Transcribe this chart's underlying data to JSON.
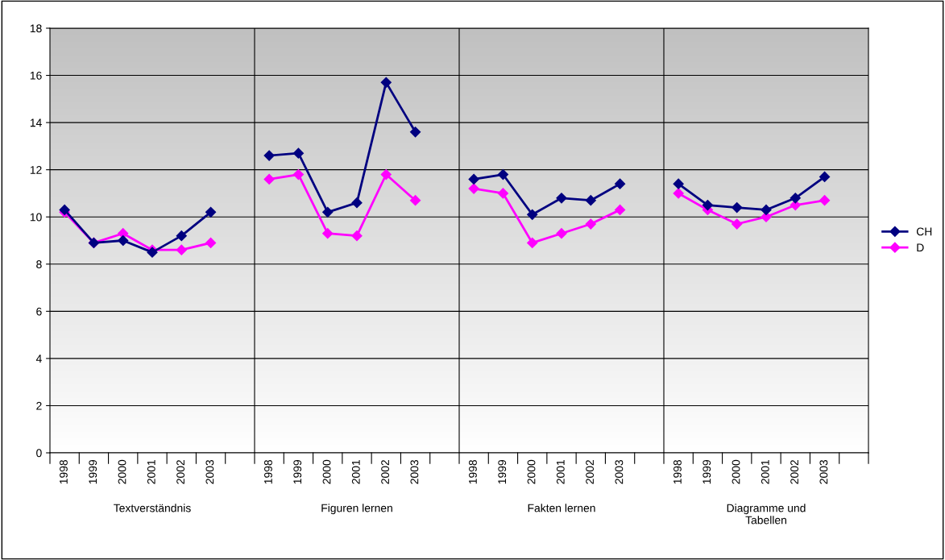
{
  "chart_data": {
    "type": "line",
    "categories": [
      "1998",
      "1999",
      "2000",
      "2001",
      "2002",
      "2003",
      null,
      "1998",
      "1999",
      "2000",
      "2001",
      "2002",
      "2003",
      null,
      "1998",
      "1999",
      "2000",
      "2001",
      "2002",
      "2003",
      null,
      "1998",
      "1999",
      "2000",
      "2001",
      "2002",
      "2003",
      null
    ],
    "series": [
      {
        "name": "CH",
        "color": "#000080",
        "values": [
          10.3,
          8.9,
          9.0,
          8.5,
          9.2,
          10.2,
          null,
          12.6,
          12.7,
          10.2,
          10.6,
          15.7,
          13.6,
          null,
          11.6,
          11.8,
          10.1,
          10.8,
          10.7,
          11.4,
          null,
          11.4,
          10.5,
          10.4,
          10.3,
          10.8,
          11.7,
          null
        ]
      },
      {
        "name": "D",
        "color": "#ff00ff",
        "values": [
          10.2,
          8.9,
          9.3,
          8.6,
          8.6,
          8.9,
          null,
          11.6,
          11.8,
          9.3,
          9.2,
          11.8,
          10.7,
          null,
          11.2,
          11.0,
          8.9,
          9.3,
          9.7,
          10.3,
          null,
          11.0,
          10.3,
          9.7,
          10.0,
          10.5,
          10.7,
          null
        ]
      }
    ],
    "annotations": [
      "Textverständnis",
      "Figuren lernen",
      "Fakten lernen",
      "Diagramme und\nTabellen"
    ],
    "ylim": [
      0,
      18
    ],
    "yticks": [
      0,
      2,
      4,
      6,
      8,
      10,
      12,
      14,
      16,
      18
    ],
    "grid": true,
    "legend": "right",
    "marker": "diamond",
    "line_style": "solid"
  }
}
